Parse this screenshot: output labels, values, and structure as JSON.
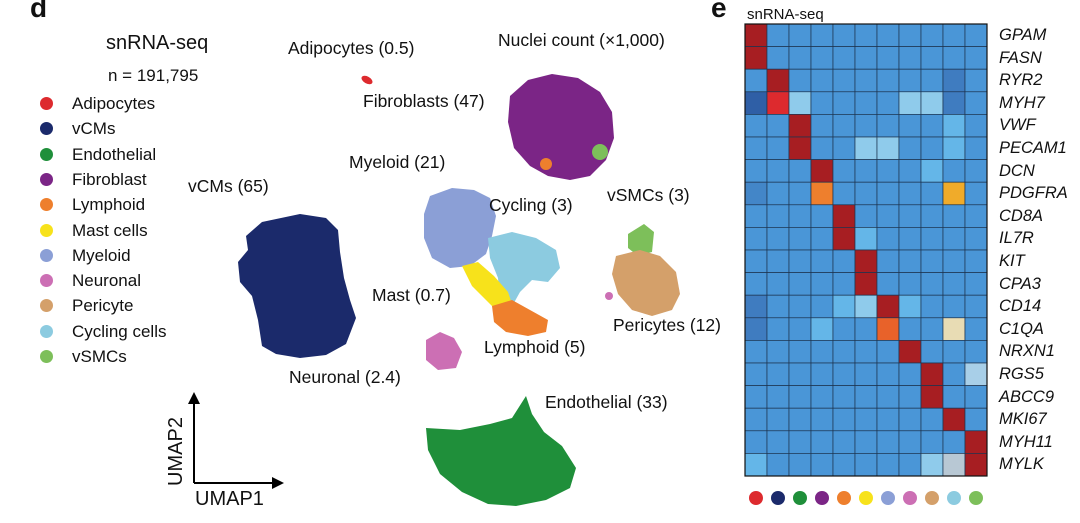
{
  "panels": {
    "left_letter": "d",
    "right_letter": "e"
  },
  "umap": {
    "title": "snRNA-seq",
    "n_label": "n = 191,795",
    "nuclei_count_label": "Nuclei count (×1,000)",
    "x_axis": "UMAP1",
    "y_axis": "UMAP2"
  },
  "legend": [
    {
      "name": "Adipocytes",
      "color": "#dd2a2e"
    },
    {
      "name": "vCMs",
      "color": "#1b2a6b"
    },
    {
      "name": "Endothelial",
      "color": "#1f8f3a"
    },
    {
      "name": "Fibroblast",
      "color": "#7b2586"
    },
    {
      "name": "Lymphoid",
      "color": "#ee7f2d"
    },
    {
      "name": "Mast cells",
      "color": "#f7e21b"
    },
    {
      "name": "Myeloid",
      "color": "#8b9fd6"
    },
    {
      "name": "Neuronal",
      "color": "#cc6fb4"
    },
    {
      "name": "Pericyte",
      "color": "#d4a06a"
    },
    {
      "name": "Cycling cells",
      "color": "#8ccbe0"
    },
    {
      "name": "vSMCs",
      "color": "#7dbf5a"
    }
  ],
  "clusters": [
    {
      "id": "adipocytes",
      "label": "Adipocytes (0.5)",
      "count_k": 0.5,
      "color": "#dd2a2e"
    },
    {
      "id": "fibroblasts",
      "label": "Fibroblasts (47)",
      "count_k": 47,
      "color": "#7b2586"
    },
    {
      "id": "myeloid",
      "label": "Myeloid (21)",
      "count_k": 21,
      "color": "#8b9fd6"
    },
    {
      "id": "cycling",
      "label": "Cycling (3)",
      "count_k": 3,
      "color": "#8ccbe0"
    },
    {
      "id": "vsmcs",
      "label": "vSMCs (3)",
      "count_k": 3,
      "color": "#7dbf5a"
    },
    {
      "id": "vcms",
      "label": "vCMs (65)",
      "count_k": 65,
      "color": "#1b2a6b"
    },
    {
      "id": "mast",
      "label": "Mast (0.7)",
      "count_k": 0.7,
      "color": "#f7e21b"
    },
    {
      "id": "pericytes",
      "label": "Pericytes (12)",
      "count_k": 12,
      "color": "#d4a06a"
    },
    {
      "id": "lymphoid",
      "label": "Lymphoid (5)",
      "count_k": 5,
      "color": "#ee7f2d"
    },
    {
      "id": "neuronal",
      "label": "Neuronal (2.4)",
      "count_k": 2.4,
      "color": "#cc6fb4"
    },
    {
      "id": "endothelial",
      "label": "Endothelial (33)",
      "count_k": 33,
      "color": "#1f8f3a"
    }
  ],
  "chart_data": {
    "type": "heatmap",
    "title": "snRNA-seq",
    "genes": [
      "GPAM",
      "FASN",
      "RYR2",
      "MYH7",
      "VWF",
      "PECAM1",
      "DCN",
      "PDGFRA",
      "CD8A",
      "IL7R",
      "KIT",
      "CPA3",
      "CD14",
      "C1QA",
      "NRXN1",
      "RGS5",
      "ABCC9",
      "MKI67",
      "MYH11",
      "MYLK"
    ],
    "cell_types": [
      "Adipocytes",
      "vCMs",
      "Endothelial",
      "Fibroblast",
      "Lymphoid",
      "Mast cells",
      "Myeloid",
      "Neuronal",
      "Pericyte",
      "Cycling cells",
      "vSMCs"
    ],
    "column_colors": [
      "#dd2a2e",
      "#1b2a6b",
      "#1f8f3a",
      "#7b2586",
      "#ee7f2d",
      "#f7e21b",
      "#8b9fd6",
      "#cc6fb4",
      "#d4a06a",
      "#8ccbe0",
      "#7dbf5a"
    ],
    "value_range": [
      -2,
      2
    ],
    "values": [
      [
        2,
        0,
        0,
        0,
        0,
        0,
        0,
        0,
        0,
        0,
        0
      ],
      [
        2,
        0,
        0,
        0,
        0,
        0,
        0,
        0,
        0,
        0,
        0
      ],
      [
        0,
        2,
        0,
        0,
        0,
        0,
        0,
        0,
        0,
        -0.8,
        0
      ],
      [
        -1.5,
        1.6,
        0.6,
        0,
        0,
        0,
        0,
        0.5,
        0.6,
        -0.8,
        0
      ],
      [
        0,
        0,
        2,
        0,
        0,
        0,
        0,
        0,
        0,
        0.3,
        0
      ],
      [
        0,
        0,
        2,
        0,
        0,
        0.5,
        0.5,
        0,
        0,
        0.4,
        0
      ],
      [
        0,
        0,
        0,
        2,
        0,
        0,
        0,
        0,
        0.3,
        0,
        0
      ],
      [
        -0.5,
        0,
        0,
        1.3,
        0,
        0,
        0,
        0,
        0,
        1.3,
        0
      ],
      [
        0,
        0,
        0,
        0,
        2,
        0,
        0,
        0,
        0,
        0,
        0
      ],
      [
        0,
        0,
        0,
        0,
        2,
        0.4,
        0,
        0,
        0,
        0,
        0
      ],
      [
        0,
        0,
        0,
        0,
        0,
        2,
        0,
        0,
        0,
        0,
        0
      ],
      [
        0,
        0,
        0,
        0,
        0,
        2,
        0,
        0,
        0,
        0,
        0
      ],
      [
        -0.9,
        0,
        0,
        0,
        0.3,
        0.6,
        2,
        0.3,
        0,
        0,
        0
      ],
      [
        -0.9,
        0,
        0,
        0.4,
        0,
        0,
        1.4,
        0,
        0,
        0.8,
        0
      ],
      [
        0,
        0,
        0,
        0,
        0,
        0,
        0,
        2,
        0,
        0,
        0
      ],
      [
        0,
        0,
        0,
        0,
        0,
        0,
        0,
        0,
        2,
        0,
        0.5
      ],
      [
        0,
        0,
        0,
        0,
        0,
        0,
        0,
        0,
        2,
        0,
        0
      ],
      [
        0,
        0,
        0,
        0,
        0,
        0,
        0,
        0,
        0,
        2,
        0
      ],
      [
        0,
        0,
        0,
        0,
        0,
        0,
        0,
        0,
        0,
        0,
        2
      ],
      [
        0.3,
        0,
        0,
        0,
        0,
        0,
        0,
        0,
        0.6,
        0,
        2
      ]
    ]
  }
}
